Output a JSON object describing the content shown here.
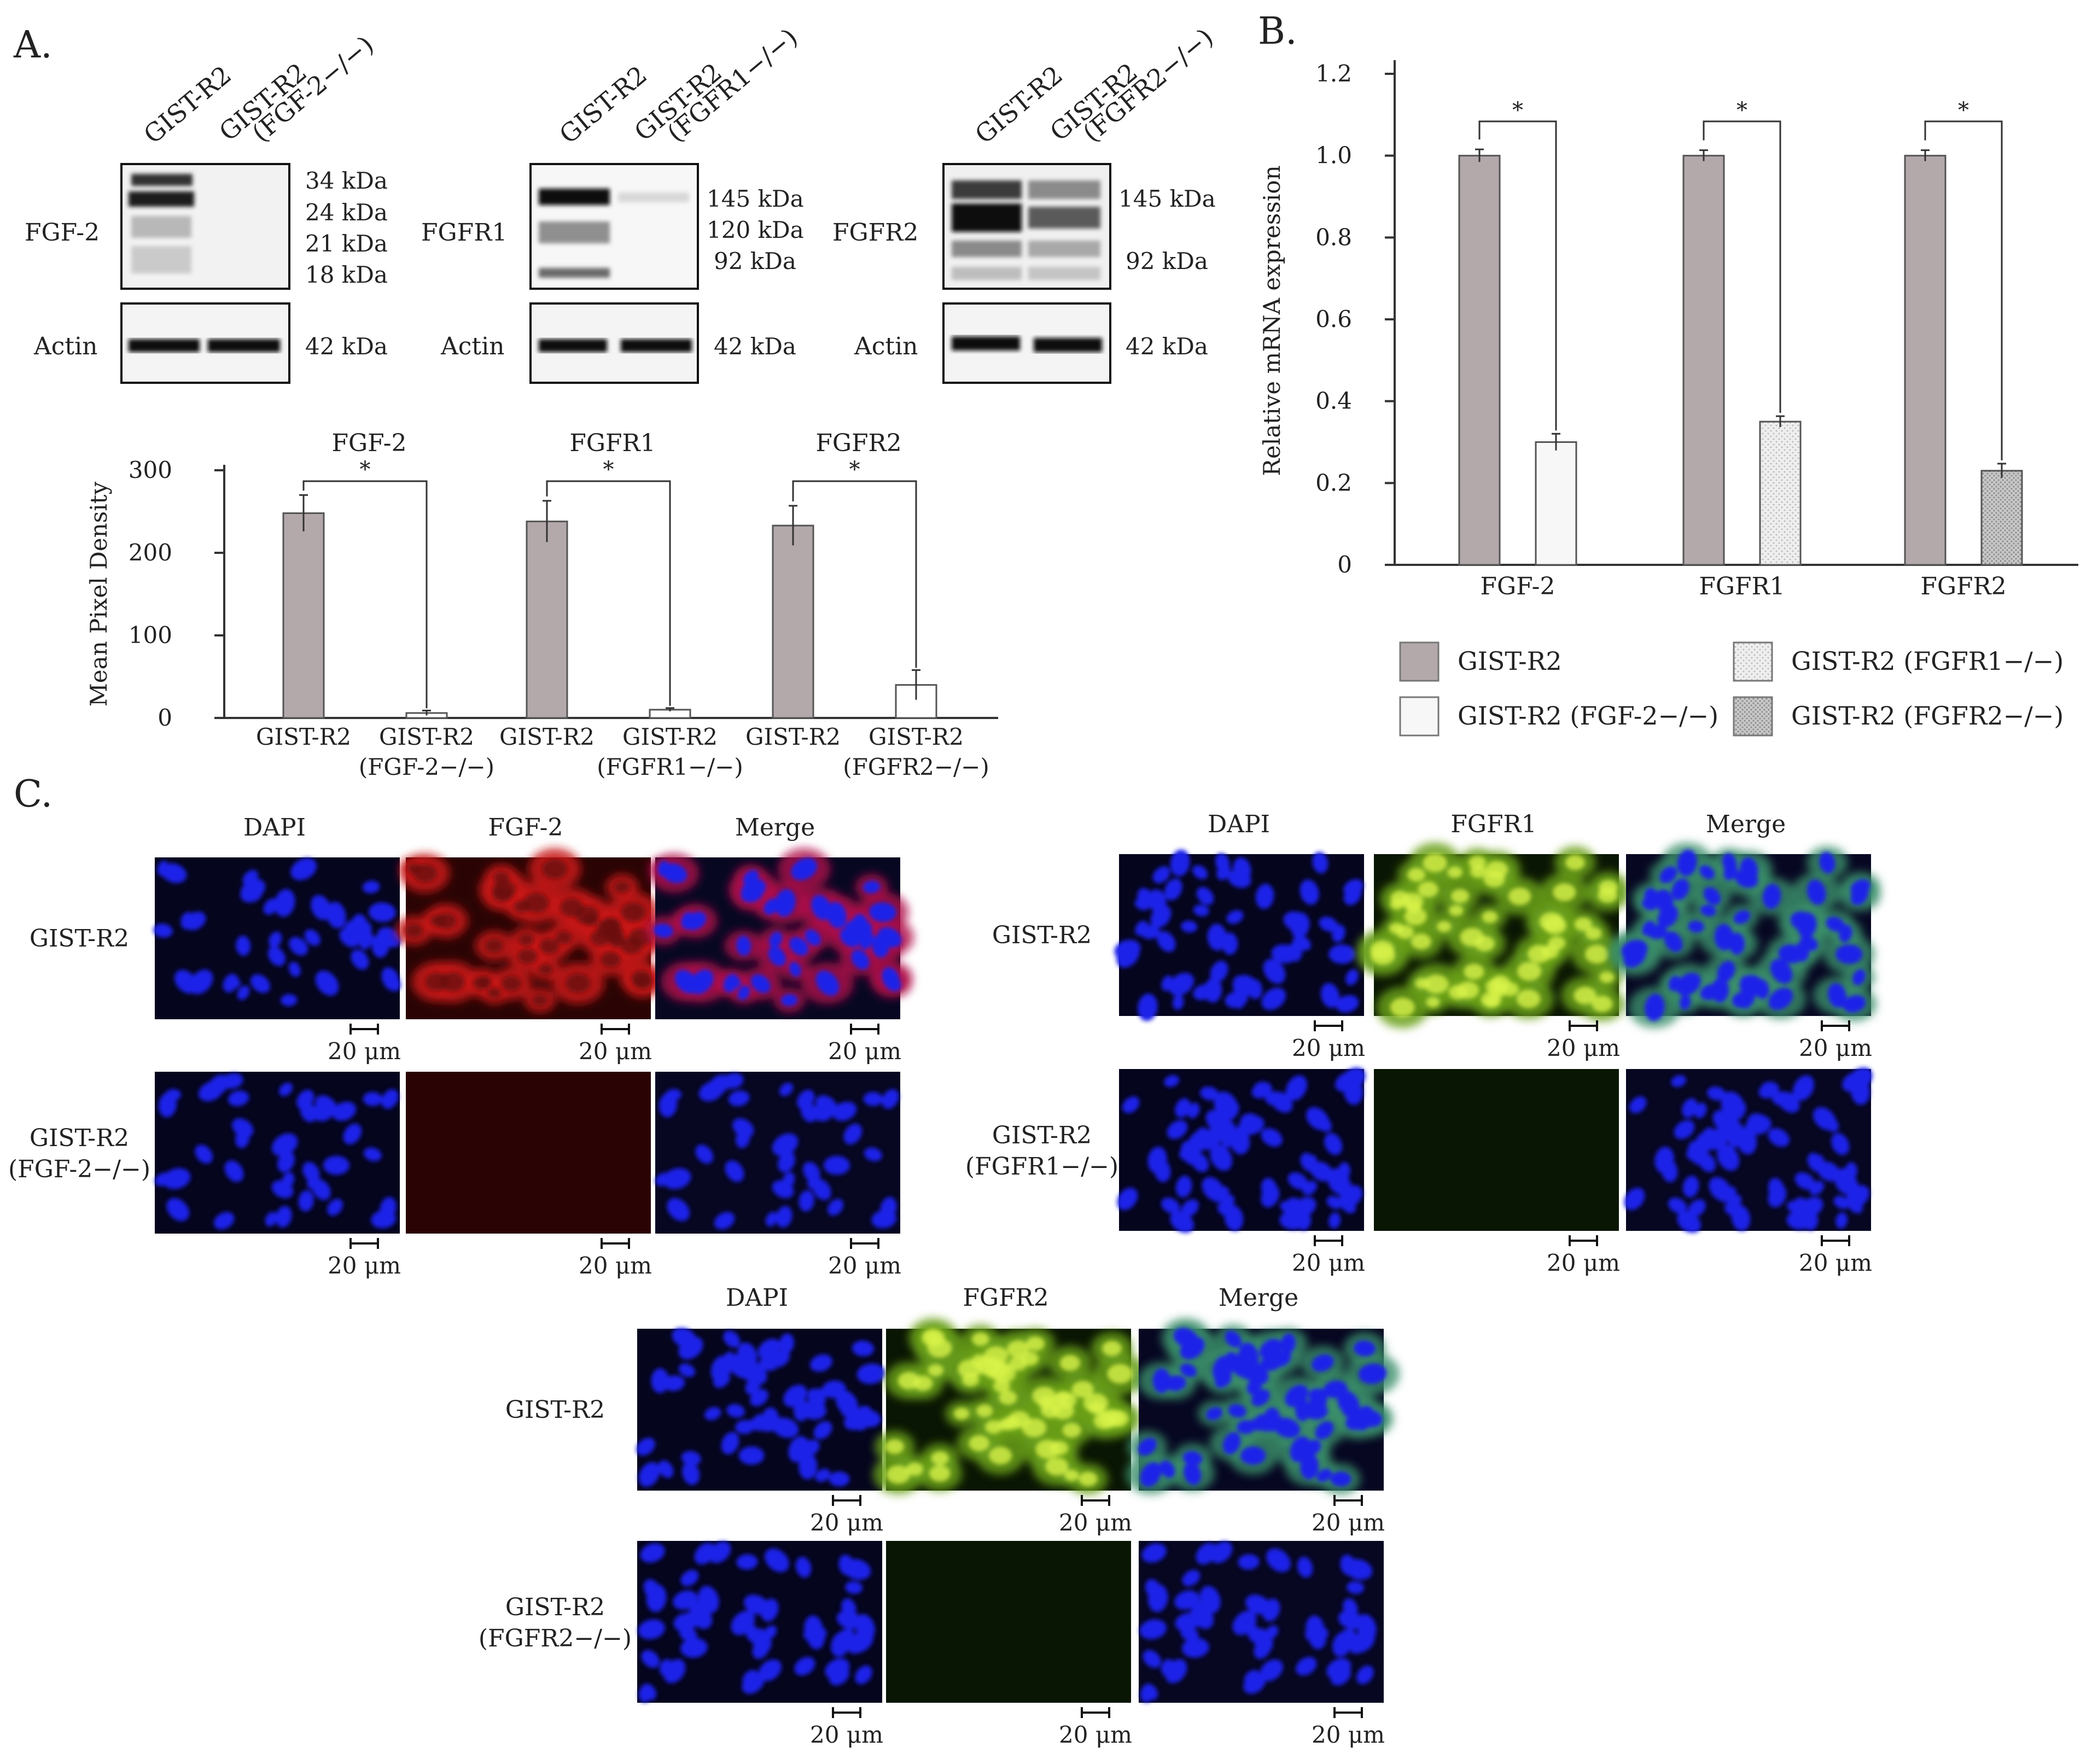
{
  "panel_a": {
    "label": "A.",
    "blots": [
      {
        "name": "fgf2",
        "lanes": [
          "GIST-R2",
          "GIST-R2"
        ],
        "lane_sub": [
          "",
          "(FGF-2−/−)"
        ],
        "protein": "FGF-2",
        "markers": [
          "34 kDa",
          "24 kDa",
          "21 kDa",
          "18 kDa"
        ],
        "actin": "Actin",
        "actin_kda": "42 kDa"
      },
      {
        "name": "fgfr1",
        "lanes": [
          "GIST-R2",
          "GIST-R2"
        ],
        "lane_sub": [
          "",
          "(FGFR1−/−)"
        ],
        "protein": "FGFR1",
        "markers": [
          "145 kDa",
          "120 kDa",
          "92 kDa"
        ],
        "actin": "Actin",
        "actin_kda": "42 kDa"
      },
      {
        "name": "fgfr2",
        "lanes": [
          "GIST-R2",
          "GIST-R2"
        ],
        "lane_sub": [
          "",
          "(FGFR2−/−)"
        ],
        "protein": "FGFR2",
        "markers": [
          "145 kDa",
          "92 kDa"
        ],
        "actin": "Actin",
        "actin_kda": "42 kDa"
      }
    ]
  },
  "panel_b": {
    "label": "B."
  },
  "panel_c": {
    "label": "C.",
    "scale": "20 μm",
    "groups": [
      {
        "name": "fgf2",
        "cols": [
          "DAPI",
          "FGF-2",
          "Merge"
        ],
        "rows": [
          [
            "GIST-R2",
            ""
          ],
          [
            "GIST-R2",
            "(FGF-2−/−)"
          ]
        ],
        "stain": "red"
      },
      {
        "name": "fgfr1",
        "cols": [
          "DAPI",
          "FGFR1",
          "Merge"
        ],
        "rows": [
          [
            "GIST-R2",
            ""
          ],
          [
            "GIST-R2",
            "(FGFR1−/−)"
          ]
        ],
        "stain": "green"
      },
      {
        "name": "fgfr2",
        "cols": [
          "DAPI",
          "FGFR2",
          "Merge"
        ],
        "rows": [
          [
            "GIST-R2",
            ""
          ],
          [
            "GIST-R2",
            "(FGFR2−/−)"
          ]
        ],
        "stain": "green"
      }
    ]
  },
  "chart_data": [
    {
      "type": "bar",
      "ylabel": "Mean Pixel Density",
      "ylim": [
        0,
        300
      ],
      "yticks": [
        0,
        100,
        200,
        300
      ],
      "groups": [
        {
          "title": "FGF-2",
          "categories": [
            "GIST-R2",
            "GIST-R2 (FGF-2−/−)"
          ],
          "values": [
            248,
            6
          ],
          "errors": [
            22,
            3
          ],
          "sig": "*"
        },
        {
          "title": "FGFR1",
          "categories": [
            "GIST-R2",
            "GIST-R2 (FGFR1−/−)"
          ],
          "values": [
            238,
            10
          ],
          "errors": [
            25,
            2
          ],
          "sig": "*"
        },
        {
          "title": "FGFR2",
          "categories": [
            "GIST-R2",
            "GIST-R2 (FGFR2−/−)"
          ],
          "values": [
            233,
            40
          ],
          "errors": [
            24,
            18
          ],
          "sig": "*"
        }
      ],
      "colors": {
        "wt": "#b3a9ab",
        "ko": "#ffffff"
      }
    },
    {
      "type": "bar",
      "ylabel": "Relative mRNA expression",
      "ylim": [
        0,
        1.2
      ],
      "yticks": [
        "0",
        "0.2",
        "0.4",
        "0.6",
        "0.8",
        "1.0",
        "1.2"
      ],
      "categories": [
        "FGF-2",
        "FGFR1",
        "FGFR2"
      ],
      "series": [
        {
          "name": "GIST-R2",
          "values": [
            1.0,
            1.0,
            1.0
          ],
          "errors": [
            0.01,
            0.008,
            0.008
          ]
        },
        {
          "name": "GIST-R2 (FGF-2−/−)",
          "values": [
            0.3,
            null,
            null
          ],
          "errors": [
            0.015,
            null,
            null
          ]
        },
        {
          "name": "GIST-R2 (FGFR1−/−)",
          "values": [
            null,
            0.35,
            null
          ],
          "errors": [
            null,
            0.008,
            null
          ]
        },
        {
          "name": "GIST-R2 (FGFR2−/−)",
          "values": [
            null,
            null,
            0.23
          ],
          "errors": [
            null,
            null,
            0.012
          ]
        }
      ],
      "sig": [
        "*",
        "*",
        "*"
      ],
      "legend": [
        "GIST-R2",
        "GIST-R2 (FGF-2−/−)",
        "GIST-R2 (FGFR1−/−)",
        "GIST-R2 (FGFR2−/−)"
      ],
      "legend_position": "bottom",
      "colors": {
        "wt": "#b3a9ab",
        "ko1": "#f7f7f7",
        "ko2": "#e6e6e6",
        "ko3": "#c9c9c9"
      }
    }
  ]
}
